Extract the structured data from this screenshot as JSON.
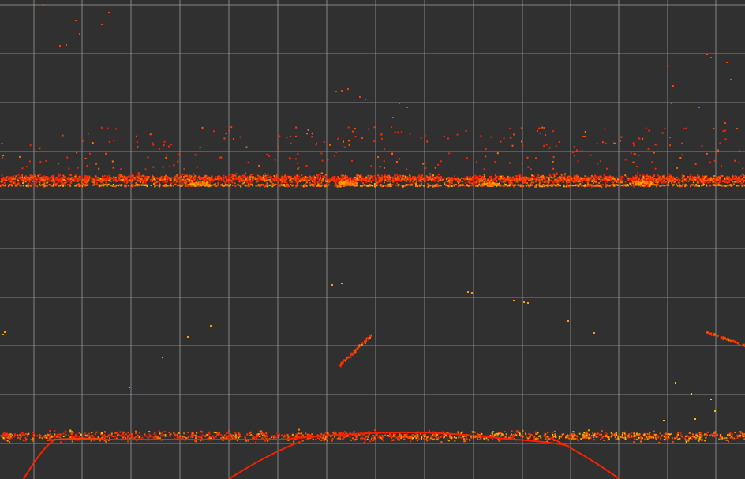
{
  "viewer": {
    "background_color": "#303030",
    "grid": {
      "enabled": true,
      "color": "#a0a0a0",
      "cell_count_x": 15,
      "cell_count_y": 10
    },
    "point_cloud": {
      "color_scheme": "intensity",
      "palette": [
        "#ff1e00",
        "#ff3a00",
        "#ff5a00",
        "#ff7a00",
        "#ffa000",
        "#ffc400"
      ]
    }
  }
}
